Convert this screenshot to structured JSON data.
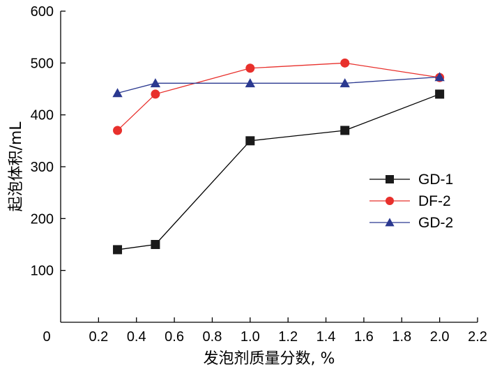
{
  "chart_data": {
    "type": "line",
    "title": "",
    "xlabel": "发泡剂质量分数, %",
    "ylabel": "起泡体积/mL",
    "xlim": [
      0,
      2.2
    ],
    "ylim": [
      0,
      600
    ],
    "x_ticks": [
      0.2,
      0.4,
      0.6,
      0.8,
      1.0,
      1.2,
      1.4,
      1.6,
      1.8,
      2.0,
      2.2
    ],
    "x_tick_labels": [
      "0.2",
      "0.4",
      "0.6",
      "0.8",
      "1.0",
      "1.2",
      "1.4",
      "1.6",
      "1.8",
      "2.0",
      "2.2"
    ],
    "y_ticks": [
      100,
      200,
      300,
      400,
      500,
      600
    ],
    "y_tick_labels": [
      "100",
      "200",
      "300",
      "400",
      "500",
      "600"
    ],
    "origin_label": "0",
    "grid": false,
    "legend_position": "right",
    "series": [
      {
        "name": "GD-1",
        "marker": "square",
        "color": "#000000",
        "marker_color": "#1a1a1a",
        "x": [
          0.3,
          0.5,
          1.0,
          1.5,
          2.0
        ],
        "values": [
          140,
          150,
          350,
          370,
          440
        ]
      },
      {
        "name": "DF-2",
        "marker": "circle",
        "color": "#e8302c",
        "marker_color": "#e8302c",
        "x": [
          0.3,
          0.5,
          1.0,
          1.5,
          2.0
        ],
        "values": [
          370,
          440,
          490,
          500,
          472
        ]
      },
      {
        "name": "GD-2",
        "marker": "triangle",
        "color": "#2b3990",
        "marker_color": "#2b3990",
        "x": [
          0.3,
          0.5,
          1.0,
          1.5,
          2.0
        ],
        "values": [
          442,
          461,
          461,
          461,
          473
        ]
      }
    ]
  }
}
